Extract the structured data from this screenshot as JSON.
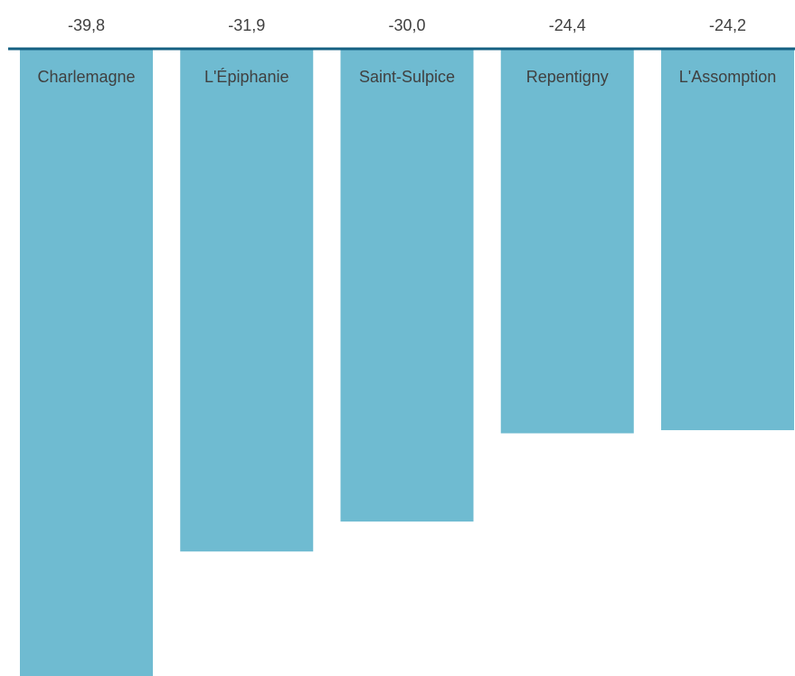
{
  "chart_data": {
    "type": "bar",
    "orientation": "vertical",
    "categories": [
      "Charlemagne",
      "L'Épiphanie",
      "Saint-Sulpice",
      "Repentigny",
      "L'Assomption"
    ],
    "values": [
      -39.8,
      -31.9,
      -30.0,
      -24.4,
      -24.2
    ],
    "value_labels": [
      "-39,8",
      "-31,9",
      "-30,0",
      "-24,4",
      "-24,2"
    ],
    "title": "",
    "xlabel": "",
    "ylabel": "",
    "ylim": [
      -39.8,
      0
    ],
    "grid": false,
    "legend": "none",
    "category_label_position": "inside-top-of-bar",
    "value_label_position": "above-axis",
    "colors": {
      "bar": "#6fbbd1",
      "axis": "#156082",
      "text": "#404040"
    }
  }
}
